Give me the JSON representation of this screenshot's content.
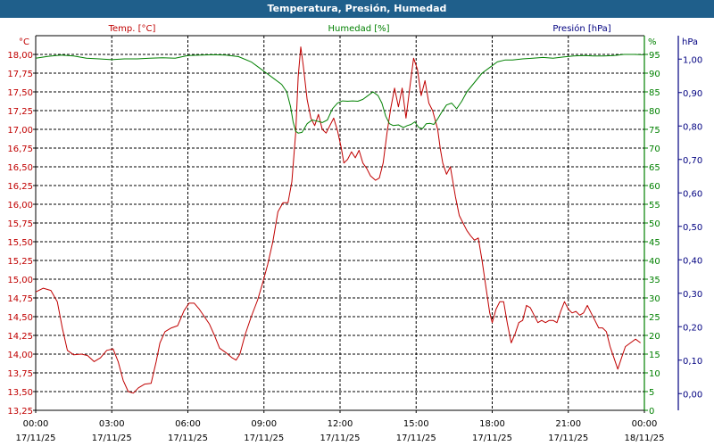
{
  "window": {
    "title": "Temperatura, Presión, Humedad"
  },
  "colors": {
    "temp": "#c00000",
    "hum": "#008000",
    "pres": "#000080",
    "titlebar": "#1f5f8b"
  },
  "chart_data": {
    "type": "line",
    "title": "Temperatura, Presión, Humedad",
    "grid": true,
    "x_ticks": [
      {
        "time": "00:00",
        "date": "17/11/25"
      },
      {
        "time": "03:00",
        "date": "17/11/25"
      },
      {
        "time": "06:00",
        "date": "17/11/25"
      },
      {
        "time": "09:00",
        "date": "17/11/25"
      },
      {
        "time": "12:00",
        "date": "17/11/25"
      },
      {
        "time": "15:00",
        "date": "17/11/25"
      },
      {
        "time": "18:00",
        "date": "17/11/25"
      },
      {
        "time": "21:00",
        "date": "17/11/25"
      },
      {
        "time": "00:00",
        "date": "18/11/25"
      }
    ],
    "x_range_hours": [
      0,
      24
    ],
    "axes": {
      "temp": {
        "label": "Temp. [°C]",
        "unit": "°C",
        "ylim": [
          13.25,
          18.25
        ],
        "ticks": [
          "18,00",
          "17,75",
          "17,50",
          "17,25",
          "17,00",
          "16,75",
          "16,50",
          "16,25",
          "16,00",
          "15,75",
          "15,50",
          "15,25",
          "15,00",
          "14,75",
          "14,50",
          "14,25",
          "14,00",
          "13,75",
          "13,50",
          "13,25"
        ],
        "tick_values": [
          18.0,
          17.75,
          17.5,
          17.25,
          17.0,
          16.75,
          16.5,
          16.25,
          16.0,
          15.75,
          15.5,
          15.25,
          15.0,
          14.75,
          14.5,
          14.25,
          14.0,
          13.75,
          13.5,
          13.25
        ]
      },
      "hum": {
        "label": "Humedad [%]",
        "unit": "%",
        "ylim": [
          0,
          100
        ],
        "ticks": [
          "95",
          "90",
          "85",
          "80",
          "75",
          "70",
          "65",
          "60",
          "55",
          "50",
          "45",
          "40",
          "35",
          "30",
          "25",
          "20",
          "15",
          "10",
          "5",
          "0"
        ],
        "tick_values": [
          95,
          90,
          85,
          80,
          75,
          70,
          65,
          60,
          55,
          50,
          45,
          40,
          35,
          30,
          25,
          20,
          15,
          10,
          5,
          0
        ]
      },
      "pres": {
        "label": "Presión [hPa]",
        "unit": "hPa",
        "ylim": [
          -0.05,
          1.07
        ],
        "ticks": [
          "1,00",
          "0,90",
          "0,80",
          "0,70",
          "0,60",
          "0,50",
          "0,40",
          "0,30",
          "0,20",
          "0,10",
          "0,00"
        ],
        "tick_values": [
          1.0,
          0.9,
          0.8,
          0.7,
          0.6,
          0.5,
          0.4,
          0.3,
          0.2,
          0.1,
          0.0
        ]
      }
    },
    "series": [
      {
        "name": "Temp. [°C]",
        "axis": "temp",
        "points": [
          [
            0,
            14.83
          ],
          [
            0.3,
            14.88
          ],
          [
            0.6,
            14.85
          ],
          [
            0.85,
            14.7
          ],
          [
            1.05,
            14.35
          ],
          [
            1.25,
            14.05
          ],
          [
            1.5,
            13.99
          ],
          [
            1.8,
            14.0
          ],
          [
            2.05,
            13.98
          ],
          [
            2.3,
            13.9
          ],
          [
            2.55,
            13.95
          ],
          [
            2.8,
            14.05
          ],
          [
            3.05,
            14.07
          ],
          [
            3.25,
            13.9
          ],
          [
            3.45,
            13.65
          ],
          [
            3.65,
            13.5
          ],
          [
            3.85,
            13.48
          ],
          [
            4.05,
            13.55
          ],
          [
            4.3,
            13.6
          ],
          [
            4.55,
            13.61
          ],
          [
            4.75,
            13.9
          ],
          [
            4.9,
            14.15
          ],
          [
            5.1,
            14.3
          ],
          [
            5.35,
            14.35
          ],
          [
            5.6,
            14.38
          ],
          [
            5.85,
            14.58
          ],
          [
            6.05,
            14.68
          ],
          [
            6.25,
            14.68
          ],
          [
            6.45,
            14.6
          ],
          [
            6.65,
            14.5
          ],
          [
            6.85,
            14.4
          ],
          [
            7.05,
            14.25
          ],
          [
            7.25,
            14.08
          ],
          [
            7.5,
            14.02
          ],
          [
            7.75,
            13.95
          ],
          [
            7.9,
            13.92
          ],
          [
            8.05,
            14.0
          ],
          [
            8.25,
            14.25
          ],
          [
            8.5,
            14.5
          ],
          [
            8.75,
            14.72
          ],
          [
            8.95,
            14.95
          ],
          [
            9.15,
            15.2
          ],
          [
            9.35,
            15.5
          ],
          [
            9.55,
            15.9
          ],
          [
            9.75,
            16.02
          ],
          [
            9.95,
            16.02
          ],
          [
            10.1,
            16.3
          ],
          [
            10.25,
            16.95
          ],
          [
            10.35,
            17.7
          ],
          [
            10.45,
            18.1
          ],
          [
            10.55,
            17.85
          ],
          [
            10.7,
            17.4
          ],
          [
            10.85,
            17.15
          ],
          [
            11.0,
            17.05
          ],
          [
            11.15,
            17.2
          ],
          [
            11.3,
            17.0
          ],
          [
            11.45,
            16.95
          ],
          [
            11.6,
            17.05
          ],
          [
            11.75,
            17.15
          ],
          [
            11.9,
            16.98
          ],
          [
            12.05,
            16.75
          ],
          [
            12.15,
            16.55
          ],
          [
            12.3,
            16.6
          ],
          [
            12.45,
            16.7
          ],
          [
            12.6,
            16.62
          ],
          [
            12.75,
            16.72
          ],
          [
            12.9,
            16.55
          ],
          [
            13.05,
            16.48
          ],
          [
            13.2,
            16.38
          ],
          [
            13.4,
            16.32
          ],
          [
            13.55,
            16.35
          ],
          [
            13.7,
            16.55
          ],
          [
            13.85,
            16.95
          ],
          [
            14.0,
            17.28
          ],
          [
            14.15,
            17.55
          ],
          [
            14.3,
            17.3
          ],
          [
            14.45,
            17.55
          ],
          [
            14.6,
            17.15
          ],
          [
            14.75,
            17.55
          ],
          [
            14.9,
            17.95
          ],
          [
            15.05,
            17.8
          ],
          [
            15.2,
            17.45
          ],
          [
            15.35,
            17.65
          ],
          [
            15.5,
            17.35
          ],
          [
            15.65,
            17.25
          ],
          [
            15.85,
            17.0
          ],
          [
            15.95,
            16.75
          ],
          [
            16.05,
            16.55
          ],
          [
            16.2,
            16.4
          ],
          [
            16.35,
            16.5
          ],
          [
            16.55,
            16.1
          ],
          [
            16.7,
            15.85
          ],
          [
            16.85,
            15.75
          ],
          [
            17.0,
            15.65
          ],
          [
            17.15,
            15.58
          ],
          [
            17.3,
            15.52
          ],
          [
            17.45,
            15.55
          ],
          [
            17.6,
            15.25
          ],
          [
            17.75,
            14.9
          ],
          [
            17.9,
            14.55
          ],
          [
            18.0,
            14.42
          ],
          [
            18.15,
            14.6
          ],
          [
            18.3,
            14.7
          ],
          [
            18.45,
            14.7
          ],
          [
            18.6,
            14.4
          ],
          [
            18.75,
            14.15
          ],
          [
            18.9,
            14.27
          ],
          [
            19.05,
            14.42
          ],
          [
            19.2,
            14.45
          ],
          [
            19.35,
            14.65
          ],
          [
            19.5,
            14.62
          ],
          [
            19.65,
            14.52
          ],
          [
            19.8,
            14.42
          ],
          [
            19.95,
            14.45
          ],
          [
            20.1,
            14.42
          ],
          [
            20.25,
            14.45
          ],
          [
            20.4,
            14.45
          ],
          [
            20.55,
            14.42
          ],
          [
            20.7,
            14.57
          ],
          [
            20.85,
            14.7
          ],
          [
            21.0,
            14.6
          ],
          [
            21.15,
            14.55
          ],
          [
            21.3,
            14.57
          ],
          [
            21.45,
            14.52
          ],
          [
            21.6,
            14.55
          ],
          [
            21.75,
            14.65
          ],
          [
            21.9,
            14.55
          ],
          [
            22.05,
            14.45
          ],
          [
            22.2,
            14.35
          ],
          [
            22.35,
            14.35
          ],
          [
            22.5,
            14.3
          ],
          [
            22.65,
            14.1
          ],
          [
            22.8,
            13.95
          ],
          [
            22.95,
            13.8
          ],
          [
            23.1,
            13.95
          ],
          [
            23.25,
            14.1
          ],
          [
            23.45,
            14.15
          ],
          [
            23.65,
            14.2
          ],
          [
            23.85,
            14.15
          ]
        ]
      },
      {
        "name": "Humedad [%]",
        "axis": "hum",
        "points": [
          [
            0,
            94.0
          ],
          [
            0.5,
            94.5
          ],
          [
            1.0,
            94.8
          ],
          [
            1.5,
            94.6
          ],
          [
            2.0,
            94.0
          ],
          [
            2.5,
            93.8
          ],
          [
            3.0,
            93.6
          ],
          [
            3.5,
            93.8
          ],
          [
            4.0,
            93.8
          ],
          [
            4.5,
            94.0
          ],
          [
            5.0,
            94.1
          ],
          [
            5.5,
            94.0
          ],
          [
            6.0,
            94.7
          ],
          [
            6.5,
            94.8
          ],
          [
            7.0,
            94.9
          ],
          [
            7.5,
            94.8
          ],
          [
            8.0,
            94.4
          ],
          [
            8.5,
            93.0
          ],
          [
            8.8,
            91.5
          ],
          [
            9.1,
            90.0
          ],
          [
            9.4,
            88.5
          ],
          [
            9.7,
            87.0
          ],
          [
            9.9,
            85.0
          ],
          [
            10.05,
            81.0
          ],
          [
            10.15,
            77.0
          ],
          [
            10.25,
            74.5
          ],
          [
            10.35,
            74.0
          ],
          [
            10.5,
            74.2
          ],
          [
            10.7,
            76.5
          ],
          [
            10.9,
            77.5
          ],
          [
            11.1,
            77.2
          ],
          [
            11.3,
            76.8
          ],
          [
            11.5,
            77.5
          ],
          [
            11.7,
            80.5
          ],
          [
            11.9,
            82.0
          ],
          [
            12.1,
            82.6
          ],
          [
            12.3,
            82.5
          ],
          [
            12.5,
            82.6
          ],
          [
            12.7,
            82.5
          ],
          [
            12.9,
            83.0
          ],
          [
            13.1,
            84.0
          ],
          [
            13.3,
            85.0
          ],
          [
            13.5,
            84.0
          ],
          [
            13.65,
            82.0
          ],
          [
            13.8,
            78.5
          ],
          [
            13.95,
            76.5
          ],
          [
            14.1,
            76.0
          ],
          [
            14.3,
            76.2
          ],
          [
            14.5,
            75.5
          ],
          [
            14.65,
            76.0
          ],
          [
            14.8,
            76.3
          ],
          [
            14.95,
            77.0
          ],
          [
            15.1,
            75.5
          ],
          [
            15.25,
            75.2
          ],
          [
            15.4,
            76.5
          ],
          [
            15.55,
            76.6
          ],
          [
            15.7,
            76.3
          ],
          [
            15.85,
            77.8
          ],
          [
            16.0,
            79.5
          ],
          [
            16.2,
            81.5
          ],
          [
            16.4,
            82.0
          ],
          [
            16.6,
            80.5
          ],
          [
            16.8,
            82.5
          ],
          [
            17.0,
            85.0
          ],
          [
            17.3,
            87.5
          ],
          [
            17.6,
            90.0
          ],
          [
            17.9,
            91.5
          ],
          [
            18.2,
            93.0
          ],
          [
            18.5,
            93.5
          ],
          [
            18.8,
            93.5
          ],
          [
            19.2,
            93.8
          ],
          [
            19.6,
            94.0
          ],
          [
            20.0,
            94.2
          ],
          [
            20.4,
            94.0
          ],
          [
            20.8,
            94.3
          ],
          [
            21.2,
            94.6
          ],
          [
            21.6,
            94.7
          ],
          [
            22.0,
            94.6
          ],
          [
            22.4,
            94.6
          ],
          [
            22.8,
            94.7
          ],
          [
            23.2,
            95.0
          ],
          [
            23.6,
            95.0
          ],
          [
            23.95,
            94.9
          ]
        ]
      }
    ]
  }
}
